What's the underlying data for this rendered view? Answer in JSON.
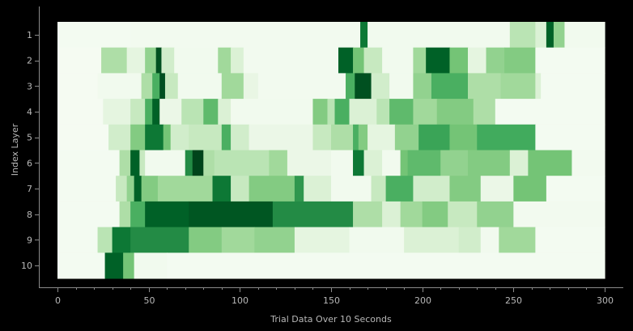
{
  "chart_data": {
    "type": "heatmap",
    "title": "",
    "xlabel": "Trial Data Over 10 Seconds",
    "ylabel": "Index Layer",
    "xlim": [
      0,
      300
    ],
    "x_ticks": [
      0,
      50,
      100,
      150,
      200,
      250,
      300
    ],
    "x_minor_step": 10,
    "rows": [
      "1",
      "2",
      "3",
      "4",
      "5",
      "6",
      "7",
      "8",
      "9",
      "10"
    ],
    "colormap": "Greens",
    "value_range": [
      0,
      1
    ],
    "background": "#000000",
    "segments": [
      [
        [
          0,
          40,
          0.03
        ],
        [
          40,
          166,
          0.04
        ],
        [
          166,
          170,
          0.9
        ],
        [
          170,
          248,
          0.05
        ],
        [
          248,
          262,
          0.35
        ],
        [
          262,
          268,
          0.2
        ],
        [
          268,
          272,
          0.95
        ],
        [
          272,
          278,
          0.5
        ],
        [
          278,
          300,
          0.05
        ]
      ],
      [
        [
          0,
          24,
          0.02
        ],
        [
          24,
          38,
          0.4
        ],
        [
          38,
          48,
          0.15
        ],
        [
          48,
          54,
          0.5
        ],
        [
          54,
          57,
          0.98
        ],
        [
          57,
          64,
          0.25
        ],
        [
          64,
          88,
          0.05
        ],
        [
          88,
          95,
          0.45
        ],
        [
          95,
          102,
          0.2
        ],
        [
          102,
          154,
          0.04
        ],
        [
          154,
          162,
          0.95
        ],
        [
          162,
          168,
          0.6
        ],
        [
          168,
          178,
          0.3
        ],
        [
          178,
          195,
          0.05
        ],
        [
          195,
          202,
          0.45
        ],
        [
          202,
          215,
          0.95
        ],
        [
          215,
          225,
          0.6
        ],
        [
          225,
          235,
          0.15
        ],
        [
          235,
          245,
          0.5
        ],
        [
          245,
          262,
          0.55
        ],
        [
          262,
          300,
          0.03
        ]
      ],
      [
        [
          0,
          22,
          0.02
        ],
        [
          22,
          46,
          0.05
        ],
        [
          46,
          52,
          0.4
        ],
        [
          52,
          56,
          0.7
        ],
        [
          56,
          59,
          0.98
        ],
        [
          59,
          66,
          0.3
        ],
        [
          66,
          90,
          0.05
        ],
        [
          90,
          102,
          0.45
        ],
        [
          102,
          110,
          0.12
        ],
        [
          110,
          158,
          0.04
        ],
        [
          158,
          163,
          0.7
        ],
        [
          163,
          172,
          0.98
        ],
        [
          172,
          182,
          0.25
        ],
        [
          182,
          195,
          0.05
        ],
        [
          195,
          205,
          0.5
        ],
        [
          205,
          225,
          0.7
        ],
        [
          225,
          243,
          0.4
        ],
        [
          243,
          262,
          0.45
        ],
        [
          262,
          265,
          0.2
        ],
        [
          265,
          300,
          0.03
        ]
      ],
      [
        [
          0,
          25,
          0.02
        ],
        [
          25,
          40,
          0.15
        ],
        [
          40,
          48,
          0.3
        ],
        [
          48,
          52,
          0.7
        ],
        [
          52,
          56,
          0.95
        ],
        [
          56,
          68,
          0.1
        ],
        [
          68,
          80,
          0.35
        ],
        [
          80,
          88,
          0.65
        ],
        [
          88,
          95,
          0.2
        ],
        [
          95,
          140,
          0.05
        ],
        [
          140,
          148,
          0.55
        ],
        [
          148,
          152,
          0.35
        ],
        [
          152,
          160,
          0.7
        ],
        [
          160,
          175,
          0.2
        ],
        [
          175,
          182,
          0.35
        ],
        [
          182,
          195,
          0.65
        ],
        [
          195,
          208,
          0.45
        ],
        [
          208,
          228,
          0.55
        ],
        [
          228,
          240,
          0.4
        ],
        [
          240,
          300,
          0.03
        ]
      ],
      [
        [
          0,
          28,
          0.02
        ],
        [
          28,
          40,
          0.25
        ],
        [
          40,
          48,
          0.55
        ],
        [
          48,
          58,
          0.9
        ],
        [
          58,
          62,
          0.6
        ],
        [
          62,
          72,
          0.25
        ],
        [
          72,
          90,
          0.3
        ],
        [
          90,
          95,
          0.7
        ],
        [
          95,
          105,
          0.25
        ],
        [
          105,
          140,
          0.1
        ],
        [
          140,
          150,
          0.3
        ],
        [
          150,
          162,
          0.4
        ],
        [
          162,
          165,
          0.7
        ],
        [
          165,
          170,
          0.55
        ],
        [
          170,
          185,
          0.15
        ],
        [
          185,
          198,
          0.5
        ],
        [
          198,
          215,
          0.75
        ],
        [
          215,
          230,
          0.6
        ],
        [
          230,
          262,
          0.72
        ],
        [
          262,
          300,
          0.03
        ]
      ],
      [
        [
          0,
          34,
          0.03
        ],
        [
          34,
          40,
          0.4
        ],
        [
          40,
          45,
          0.95
        ],
        [
          45,
          48,
          0.3
        ],
        [
          48,
          70,
          0.05
        ],
        [
          70,
          74,
          0.85
        ],
        [
          74,
          80,
          1.0
        ],
        [
          80,
          86,
          0.4
        ],
        [
          86,
          116,
          0.35
        ],
        [
          116,
          126,
          0.45
        ],
        [
          126,
          150,
          0.1
        ],
        [
          150,
          162,
          0.05
        ],
        [
          162,
          168,
          0.9
        ],
        [
          168,
          178,
          0.2
        ],
        [
          178,
          188,
          0.05
        ],
        [
          188,
          192,
          0.6
        ],
        [
          192,
          210,
          0.65
        ],
        [
          210,
          225,
          0.5
        ],
        [
          225,
          248,
          0.55
        ],
        [
          248,
          258,
          0.2
        ],
        [
          258,
          282,
          0.6
        ],
        [
          282,
          300,
          0.04
        ]
      ],
      [
        [
          0,
          32,
          0.03
        ],
        [
          32,
          38,
          0.3
        ],
        [
          38,
          42,
          0.5
        ],
        [
          42,
          46,
          0.95
        ],
        [
          46,
          55,
          0.55
        ],
        [
          55,
          85,
          0.45
        ],
        [
          85,
          95,
          0.9
        ],
        [
          95,
          105,
          0.3
        ],
        [
          105,
          130,
          0.55
        ],
        [
          130,
          135,
          0.8
        ],
        [
          135,
          150,
          0.2
        ],
        [
          150,
          172,
          0.05
        ],
        [
          172,
          180,
          0.3
        ],
        [
          180,
          195,
          0.7
        ],
        [
          195,
          215,
          0.25
        ],
        [
          215,
          232,
          0.55
        ],
        [
          232,
          250,
          0.1
        ],
        [
          250,
          268,
          0.6
        ],
        [
          268,
          290,
          0.03
        ],
        [
          290,
          300,
          0.03
        ]
      ],
      [
        [
          0,
          34,
          0.03
        ],
        [
          34,
          40,
          0.4
        ],
        [
          40,
          48,
          0.7
        ],
        [
          48,
          72,
          0.95
        ],
        [
          72,
          118,
          0.97
        ],
        [
          118,
          162,
          0.85
        ],
        [
          162,
          178,
          0.4
        ],
        [
          178,
          188,
          0.2
        ],
        [
          188,
          200,
          0.45
        ],
        [
          200,
          214,
          0.55
        ],
        [
          214,
          230,
          0.3
        ],
        [
          230,
          250,
          0.5
        ],
        [
          250,
          300,
          0.04
        ]
      ],
      [
        [
          0,
          22,
          0.03
        ],
        [
          22,
          30,
          0.35
        ],
        [
          30,
          40,
          0.9
        ],
        [
          40,
          72,
          0.85
        ],
        [
          72,
          90,
          0.55
        ],
        [
          90,
          108,
          0.45
        ],
        [
          108,
          130,
          0.5
        ],
        [
          130,
          160,
          0.15
        ],
        [
          160,
          190,
          0.05
        ],
        [
          190,
          220,
          0.2
        ],
        [
          220,
          232,
          0.25
        ],
        [
          232,
          242,
          0.05
        ],
        [
          242,
          262,
          0.45
        ],
        [
          262,
          300,
          0.03
        ]
      ],
      [
        [
          0,
          26,
          0.03
        ],
        [
          26,
          36,
          0.95
        ],
        [
          36,
          42,
          0.6
        ],
        [
          42,
          60,
          0.05
        ],
        [
          60,
          300,
          0.03
        ]
      ]
    ]
  }
}
